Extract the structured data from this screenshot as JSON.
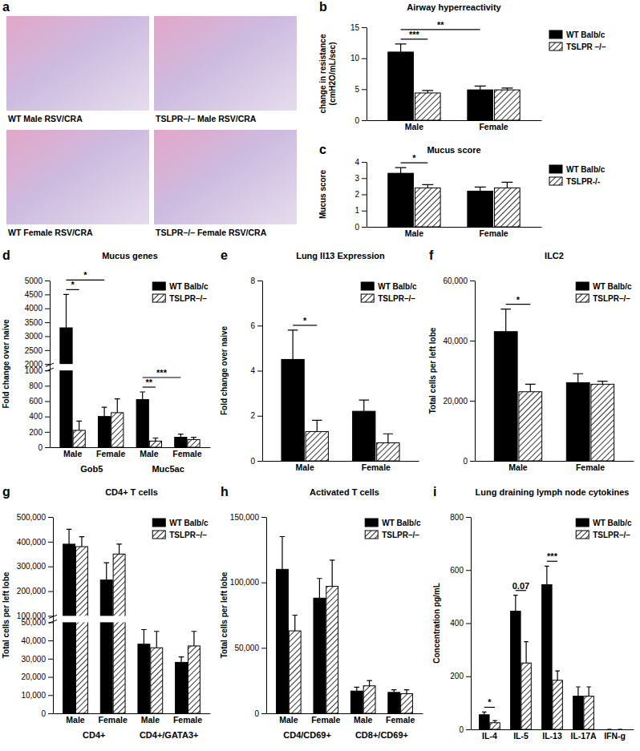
{
  "micrographs": {
    "panel": "a",
    "images": [
      {
        "caption": "WT Male RSV/CRA"
      },
      {
        "caption": "TSLPR–/– Male RSV/CRA"
      },
      {
        "caption": "WT Female RSV/CRA"
      },
      {
        "caption": "TSLPR–/– Female RSV/CRA"
      }
    ]
  },
  "chart_data": [
    {
      "type": "bar",
      "panel": "b",
      "title": "Airway hyperreactivity",
      "y_label": "change in resistance (cmH2O/mL/sec)",
      "categories": [
        "Male",
        "Female"
      ],
      "series": [
        {
          "name": "WT Balb/c",
          "color": "#000000",
          "values": [
            11.0,
            4.9
          ],
          "errors": [
            1.3,
            0.6
          ]
        },
        {
          "name": "TSLPR –/–",
          "color": "#ffffff",
          "values": [
            4.4,
            4.9
          ],
          "errors": [
            0.4,
            0.3
          ]
        }
      ],
      "ylim": [
        0,
        15
      ],
      "yticks": [
        0,
        5,
        10,
        15
      ],
      "legend": "right",
      "annotations": [
        {
          "text": "***",
          "between": [
            [
              0,
              0
            ],
            [
              0,
              1
            ]
          ]
        },
        {
          "text": "**",
          "between": [
            [
              0,
              0
            ],
            [
              1,
              0
            ]
          ]
        }
      ]
    },
    {
      "type": "bar",
      "panel": "c",
      "title": "Mucus score",
      "y_label": "Mucus score",
      "categories": [
        "Male",
        "Female"
      ],
      "series": [
        {
          "name": "WT Balb/c",
          "color": "#000000",
          "values": [
            3.3,
            2.2
          ],
          "errors": [
            0.35,
            0.25
          ]
        },
        {
          "name": "TSLPR-/-",
          "color": "#ffffff",
          "values": [
            2.4,
            2.4
          ],
          "errors": [
            0.2,
            0.35
          ]
        }
      ],
      "ylim": [
        0,
        4
      ],
      "yticks": [
        0,
        1,
        2,
        3,
        4
      ],
      "legend": "right",
      "annotations": [
        {
          "text": "*",
          "between": [
            [
              0,
              0
            ],
            [
              0,
              1
            ]
          ]
        }
      ]
    },
    {
      "type": "bar",
      "panel": "d",
      "title": "Mucus genes",
      "y_label": "Fold change over naive",
      "categories": [
        "Male",
        "Female",
        "Male",
        "Female"
      ],
      "groups": [
        "Gob5",
        "Muc5ac"
      ],
      "series": [
        {
          "name": "WT Balb/c",
          "color": "#000000",
          "values": [
            3300,
            400,
            620,
            130
          ],
          "errors": [
            1200,
            120,
            100,
            40
          ]
        },
        {
          "name": "TSLPR–/–",
          "color": "#ffffff",
          "values": [
            220,
            450,
            80,
            100
          ],
          "errors": [
            120,
            180,
            40,
            30
          ]
        }
      ],
      "ylim": [
        0,
        5000
      ],
      "y_break": [
        1000,
        2000
      ],
      "yticks": [
        0,
        200,
        400,
        600,
        800,
        1000,
        2000,
        2500,
        3000,
        3500,
        4000,
        4500,
        5000
      ],
      "legend": "upper right",
      "annotations": [
        {
          "text": "*",
          "between": [
            [
              0,
              0
            ],
            [
              0,
              1
            ]
          ]
        },
        {
          "text": "*",
          "between": [
            [
              0,
              0
            ],
            [
              1,
              0
            ]
          ]
        },
        {
          "text": "**",
          "between": [
            [
              2,
              0
            ],
            [
              2,
              1
            ]
          ]
        },
        {
          "text": "***",
          "between": [
            [
              2,
              0
            ],
            [
              3,
              0
            ]
          ]
        }
      ]
    },
    {
      "type": "bar",
      "panel": "e",
      "title": "Lung Il13 Expression",
      "y_label": "Fold change over naive",
      "categories": [
        "Male",
        "Female"
      ],
      "series": [
        {
          "name": "WT Balb/c",
          "color": "#000000",
          "values": [
            4.5,
            2.2
          ],
          "errors": [
            1.3,
            0.5
          ]
        },
        {
          "name": "TSLPR–/–",
          "color": "#ffffff",
          "values": [
            1.3,
            0.8
          ],
          "errors": [
            0.5,
            0.4
          ]
        }
      ],
      "ylim": [
        0,
        8
      ],
      "yticks": [
        0,
        2,
        4,
        6,
        8
      ],
      "legend": "upper right",
      "annotations": [
        {
          "text": "*",
          "between": [
            [
              0,
              0
            ],
            [
              0,
              1
            ]
          ]
        }
      ]
    },
    {
      "type": "bar",
      "panel": "f",
      "title": "ILC2",
      "y_label": "Total cells per left lobe",
      "categories": [
        "Male",
        "Female"
      ],
      "series": [
        {
          "name": "WT Balb/c",
          "color": "#000000",
          "values": [
            43000,
            26000
          ],
          "errors": [
            7500,
            3000
          ]
        },
        {
          "name": "TSLPR–/–",
          "color": "#ffffff",
          "values": [
            23000,
            25500
          ],
          "errors": [
            2500,
            1000
          ]
        }
      ],
      "ylim": [
        0,
        60000
      ],
      "yticks": [
        0,
        {
          "value": 20000,
          "label": "20,000"
        },
        {
          "value": 40000,
          "label": "40,000"
        },
        {
          "value": 60000,
          "label": "60,000"
        }
      ],
      "legend": "upper right",
      "annotations": [
        {
          "text": "*",
          "between": [
            [
              0,
              0
            ],
            [
              0,
              1
            ]
          ]
        }
      ]
    },
    {
      "type": "bar",
      "panel": "g",
      "title": "CD4+ T cells",
      "categories": [
        "Male",
        "Female",
        "Male",
        "Female"
      ],
      "groups": [
        "CD4+",
        "CD4+/GATA3+"
      ],
      "series": [
        {
          "name": "WT Balb/c",
          "color": "#000000",
          "values": [
            390000,
            245000,
            38000,
            28000
          ],
          "errors": [
            60000,
            70000,
            8000,
            3000
          ]
        },
        {
          "name": "TSLPR–/–",
          "color": "#ffffff",
          "values": [
            380000,
            350000,
            36000,
            37000
          ],
          "errors": [
            40000,
            40000,
            9000,
            8000
          ]
        }
      ],
      "y_label": "Total cells per left lobe",
      "ylim": [
        0,
        500000
      ],
      "y_break": [
        50000,
        100000
      ],
      "yticks": [
        0,
        {
          "value": 10000,
          "label": "10,000"
        },
        {
          "value": 20000,
          "label": "20,000"
        },
        {
          "value": 30000,
          "label": "30,000"
        },
        {
          "value": 40000,
          "label": "40,000"
        },
        {
          "value": 50000,
          "label": "50,000"
        },
        {
          "value": 100000,
          "label": "100,000"
        },
        {
          "value": 200000,
          "label": "200,000"
        },
        {
          "value": 300000,
          "label": "300,000"
        },
        {
          "value": 400000,
          "label": "400,000"
        },
        {
          "value": 500000,
          "label": "500,000"
        }
      ],
      "legend": "upper right"
    },
    {
      "type": "bar",
      "panel": "h",
      "title": "Activated T cells",
      "y_label": "Total cells per left lobe",
      "categories": [
        "Male",
        "Female",
        "Male",
        "Female"
      ],
      "groups": [
        "CD4/CD69+",
        "CD8+/CD69+"
      ],
      "series": [
        {
          "name": "WT Balb/c",
          "color": "#000000",
          "values": [
            110000,
            88000,
            17000,
            16000
          ],
          "errors": [
            25000,
            15000,
            3000,
            2000
          ]
        },
        {
          "name": "TSLPR–/–",
          "color": "#ffffff",
          "values": [
            63000,
            97000,
            21000,
            15000
          ],
          "errors": [
            12000,
            20000,
            4000,
            3000
          ]
        }
      ],
      "ylim": [
        0,
        150000
      ],
      "yticks": [
        0,
        {
          "value": 50000,
          "label": "50,000"
        },
        {
          "value": 100000,
          "label": "100,000"
        },
        {
          "value": 150000,
          "label": "150,000"
        }
      ],
      "legend": "upper right"
    },
    {
      "type": "bar",
      "panel": "i",
      "title": "Lung draining lymph node cytokines",
      "y_label": "Concentration pg/mL",
      "categories": [
        "IL-4",
        "IL-5",
        "IL-13",
        "IL-17A",
        "IFN-g"
      ],
      "series": [
        {
          "name": "WT Balb/c",
          "color": "#000000",
          "values": [
            55,
            445,
            545,
            125,
            0
          ],
          "errors": [
            10,
            60,
            70,
            35,
            0
          ]
        },
        {
          "name": "TSLPR–/–",
          "color": "#ffffff",
          "values": [
            25,
            250,
            185,
            125,
            0
          ],
          "errors": [
            8,
            80,
            35,
            35,
            0
          ]
        }
      ],
      "ylim": [
        0,
        800
      ],
      "yticks": [
        0,
        200,
        400,
        600,
        800
      ],
      "legend": "upper right",
      "annotations": [
        {
          "text": "*",
          "between": [
            [
              0,
              0
            ],
            [
              0,
              1
            ]
          ]
        },
        {
          "text": "0.07",
          "between": [
            [
              1,
              0
            ],
            [
              1,
              1
            ]
          ]
        },
        {
          "text": "***",
          "between": [
            [
              2,
              0
            ],
            [
              2,
              1
            ]
          ]
        }
      ]
    }
  ]
}
